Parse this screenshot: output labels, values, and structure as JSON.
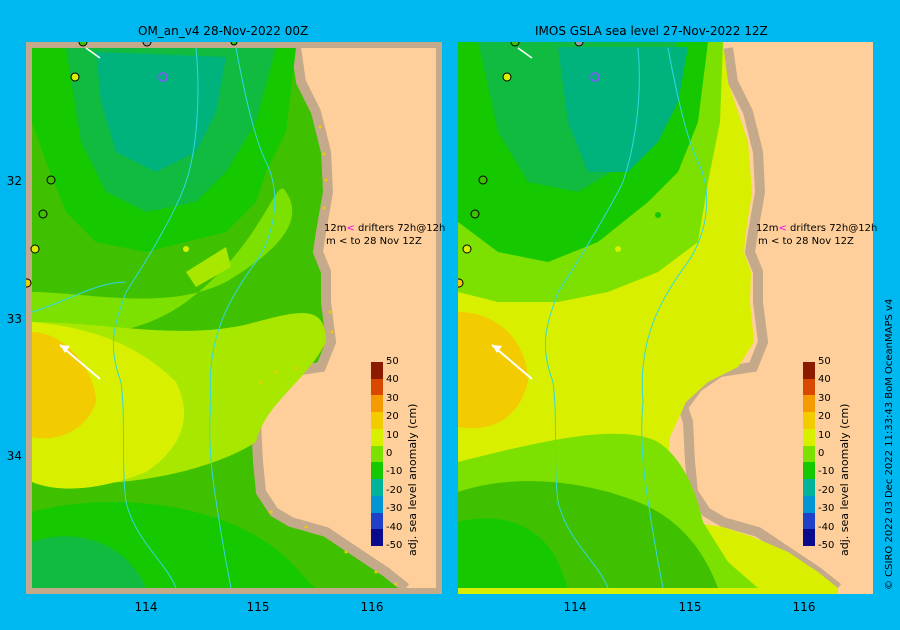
{
  "panels": {
    "left": {
      "title": "OM_an_v4  28-Nov-2022 00Z"
    },
    "right": {
      "title": "IMOS GSLA sea level  27-Nov-2022 12Z"
    }
  },
  "axes": {
    "lat_labels": [
      "32",
      "33",
      "34"
    ],
    "lon_labels": [
      "114",
      "115",
      "116"
    ]
  },
  "legend": {
    "drifters_prefix": "12m",
    "drifters_arrow": "<",
    "drifters_text": " drifters 72h@12h",
    "to_prefix": "m",
    "to_arrow": "<",
    "to_text": " to 28 Nov 12Z"
  },
  "colorbar": {
    "title": "adj. sea level anomaly (cm)",
    "ticks": [
      "50",
      "40",
      "30",
      "20",
      "10",
      "0",
      "-10",
      "-20",
      "-30",
      "-40",
      "-50"
    ],
    "colors": [
      "#8b1a00",
      "#d94800",
      "#f59a00",
      "#f2cc00",
      "#d8f000",
      "#7ce000",
      "#16c800",
      "#00b39a",
      "#0096d6",
      "#2040c8",
      "#0a0a8c"
    ]
  },
  "credit": "© CSIRO 2022   03 Dec 2022 11:33:43 BoM OceanMAPS v4",
  "colors": {
    "land": "#fecf9a",
    "coast": "#c4a98a",
    "border": "#00b8f0"
  }
}
